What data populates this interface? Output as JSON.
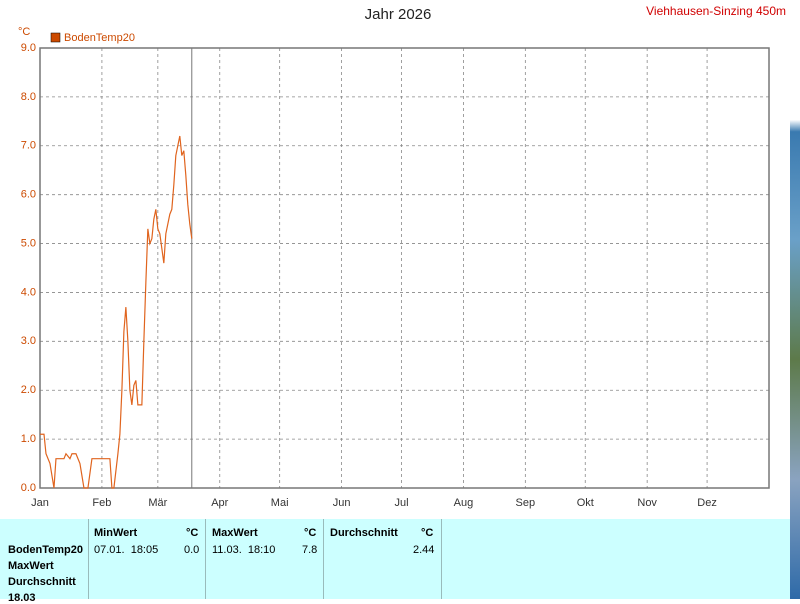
{
  "header": {
    "title": "Jahr 2026",
    "station": "Viehhausen-Sinzing 450m"
  },
  "chart_data": {
    "type": "line",
    "y_unit": "°C",
    "x": [
      0,
      2,
      3,
      5,
      7,
      8,
      12,
      13,
      15,
      16,
      18,
      20,
      22,
      24,
      26,
      35,
      36,
      37,
      39,
      40,
      41,
      42,
      43,
      44,
      45,
      46,
      47,
      48,
      49,
      51,
      52,
      53,
      54,
      55,
      56,
      57,
      58,
      59,
      60,
      61,
      62,
      63,
      64,
      65,
      66,
      67,
      68,
      69,
      70,
      71,
      72,
      73,
      74,
      75,
      76
    ],
    "series": [
      {
        "name": "BodenTemp20",
        "color": "#e0641e",
        "values": [
          1.1,
          1.1,
          0.7,
          0.5,
          0,
          0.6,
          0.6,
          0.7,
          0.6,
          0.7,
          0.7,
          0.5,
          0,
          0,
          0.6,
          0.6,
          0,
          0,
          0.7,
          1.1,
          2.0,
          3.2,
          3.7,
          3.0,
          2.0,
          1.7,
          2.1,
          2.2,
          1.7,
          1.7,
          3.0,
          4.2,
          5.3,
          5.0,
          5.1,
          5.5,
          5.7,
          5.3,
          5.2,
          4.9,
          4.6,
          5.2,
          5.4,
          5.6,
          5.7,
          6.2,
          6.8,
          7.0,
          7.2,
          6.8,
          6.9,
          6.4,
          5.8,
          5.4,
          5.1
        ]
      }
    ],
    "xlim": [
      0,
      365
    ],
    "xticks": [
      {
        "value": 0,
        "label": "Jan"
      },
      {
        "value": 31,
        "label": "Feb"
      },
      {
        "value": 59,
        "label": "Mär"
      },
      {
        "value": 90,
        "label": "Apr"
      },
      {
        "value": 120,
        "label": "Mai"
      },
      {
        "value": 151,
        "label": "Jun"
      },
      {
        "value": 181,
        "label": "Jul"
      },
      {
        "value": 212,
        "label": "Aug"
      },
      {
        "value": 243,
        "label": "Sep"
      },
      {
        "value": 273,
        "label": "Okt"
      },
      {
        "value": 304,
        "label": "Nov"
      },
      {
        "value": 334,
        "label": "Dez"
      }
    ],
    "ylim": [
      0,
      9
    ],
    "yticks": [
      {
        "value": 0,
        "label": "0.0"
      },
      {
        "value": 1,
        "label": "1.0"
      },
      {
        "value": 2,
        "label": "2.0"
      },
      {
        "value": 3,
        "label": "3.0"
      },
      {
        "value": 4,
        "label": "4.0"
      },
      {
        "value": 5,
        "label": "5.0"
      },
      {
        "value": 6,
        "label": "6.0"
      },
      {
        "value": 7,
        "label": "7.0"
      },
      {
        "value": 8,
        "label": "8.0"
      },
      {
        "value": 9,
        "label": "9.0"
      }
    ],
    "grid": true,
    "marker_x": 76
  },
  "table": {
    "headers": [
      "MinWert",
      "°C",
      "MaxWert",
      "°C",
      "Durchschnitt",
      "°C"
    ],
    "row_labels": [
      "BodenTemp20",
      "MaxWert",
      "Durchschnitt",
      "18.03"
    ],
    "cells": {
      "min_time": "07.01.  18:05",
      "min": "0.0",
      "max_time": "11.03.  18:10",
      "max": "7.8",
      "avg": "2.44"
    }
  }
}
